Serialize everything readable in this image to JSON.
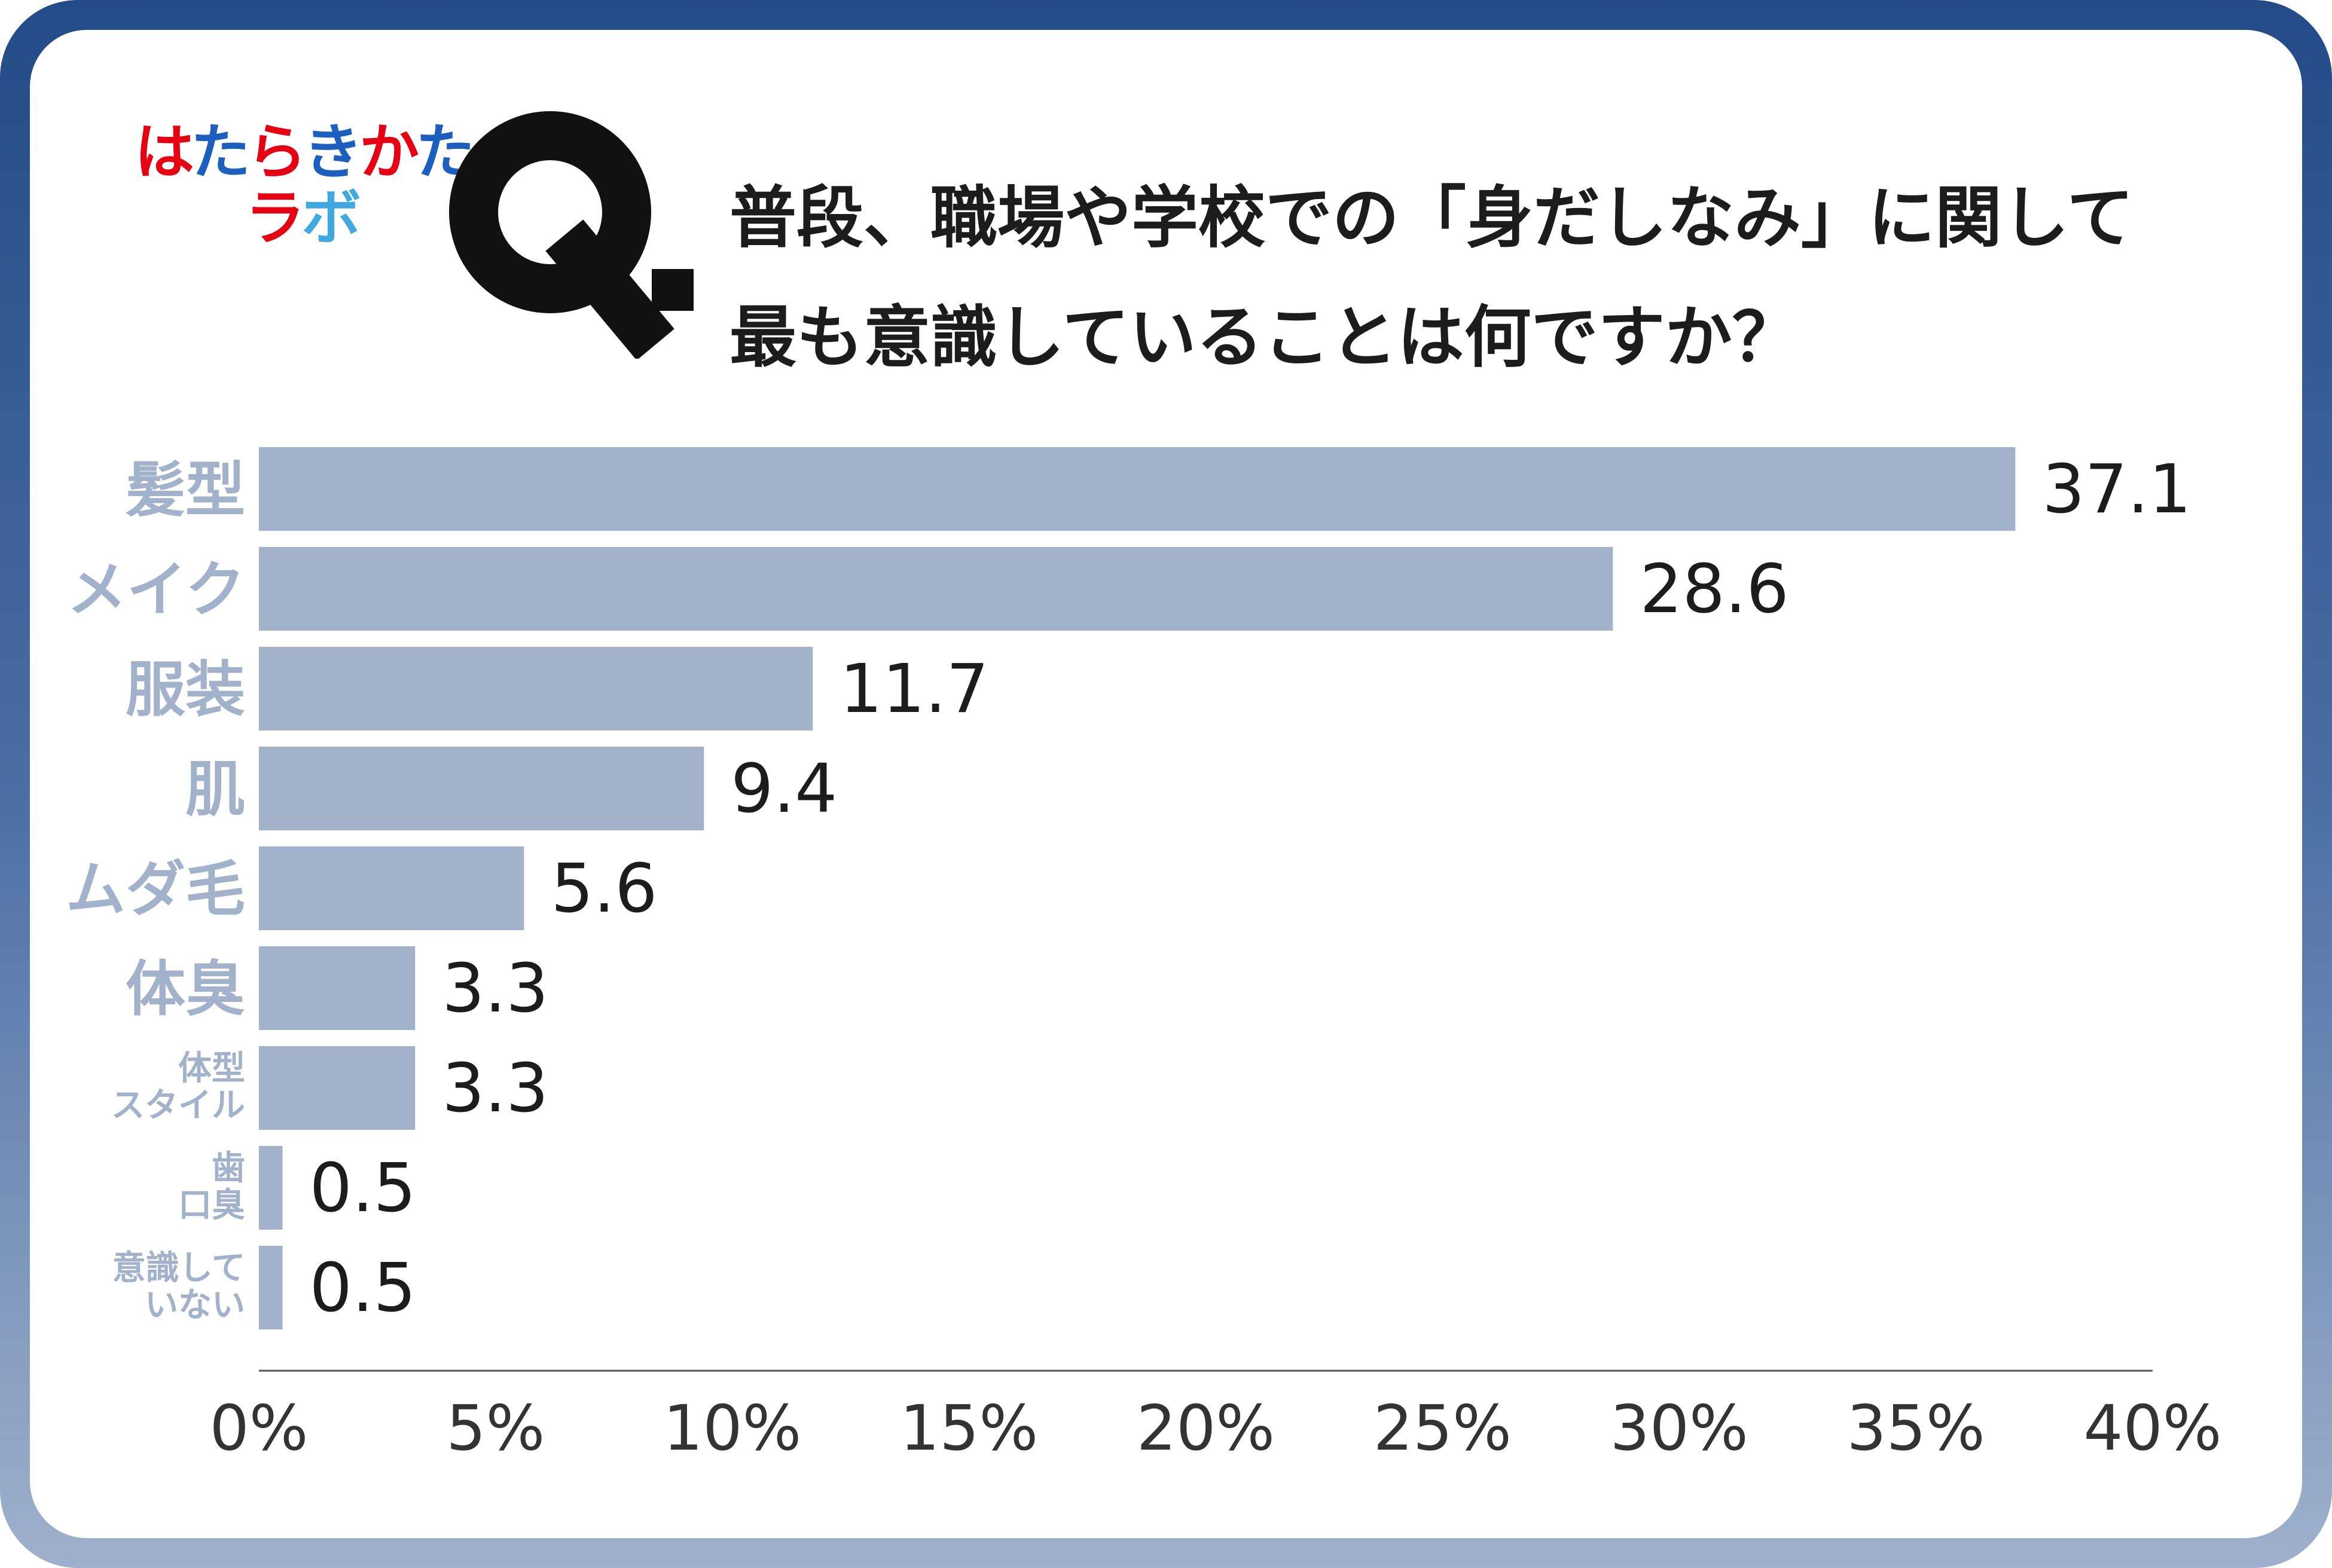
{
  "logo": {
    "line1": [
      "は",
      "た",
      "ら",
      "き",
      "か",
      "た"
    ],
    "line1_colors": [
      "#e60012",
      "#1d5fbf",
      "#e60012",
      "#1d5fbf",
      "#e60012",
      "#1d5fbf"
    ],
    "line2": [
      "ラ",
      "ボ"
    ],
    "line2_colors": [
      "#e60012",
      "#3fa9e0"
    ]
  },
  "question": {
    "mark": "Q.",
    "line1": "普段、職場や学校での「身だしなみ」に関して",
    "line2": "最も意識していることは何ですか？"
  },
  "colors": {
    "bar": "#a1b2ca",
    "category_label": "#a1b2ca",
    "value_label": "#1c1c1c",
    "axis": "#555555",
    "tick_label": "#333333"
  },
  "chart_data": {
    "type": "bar",
    "orientation": "horizontal",
    "categories": [
      [
        "髪型"
      ],
      [
        "メイク"
      ],
      [
        "服装"
      ],
      [
        "肌"
      ],
      [
        "ムダ毛"
      ],
      [
        "体臭"
      ],
      [
        "体型",
        "スタイル"
      ],
      [
        "歯",
        "口臭"
      ],
      [
        "意識して",
        "いない"
      ]
    ],
    "values": [
      37.1,
      28.6,
      11.7,
      9.4,
      5.6,
      3.3,
      3.3,
      0.5,
      0.5
    ],
    "value_labels": [
      "37.1",
      "28.6",
      "11.7",
      "9.4",
      "5.6",
      "3.3",
      "3.3",
      "0.5",
      "0.5"
    ],
    "xlim": [
      0,
      40
    ],
    "x_ticks": [
      0,
      5,
      10,
      15,
      20,
      25,
      30,
      35,
      40
    ],
    "x_tick_labels": [
      "0%",
      "5%",
      "10%",
      "15%",
      "20%",
      "25%",
      "30%",
      "35%",
      "40%"
    ],
    "grid": false,
    "legend": "none"
  }
}
